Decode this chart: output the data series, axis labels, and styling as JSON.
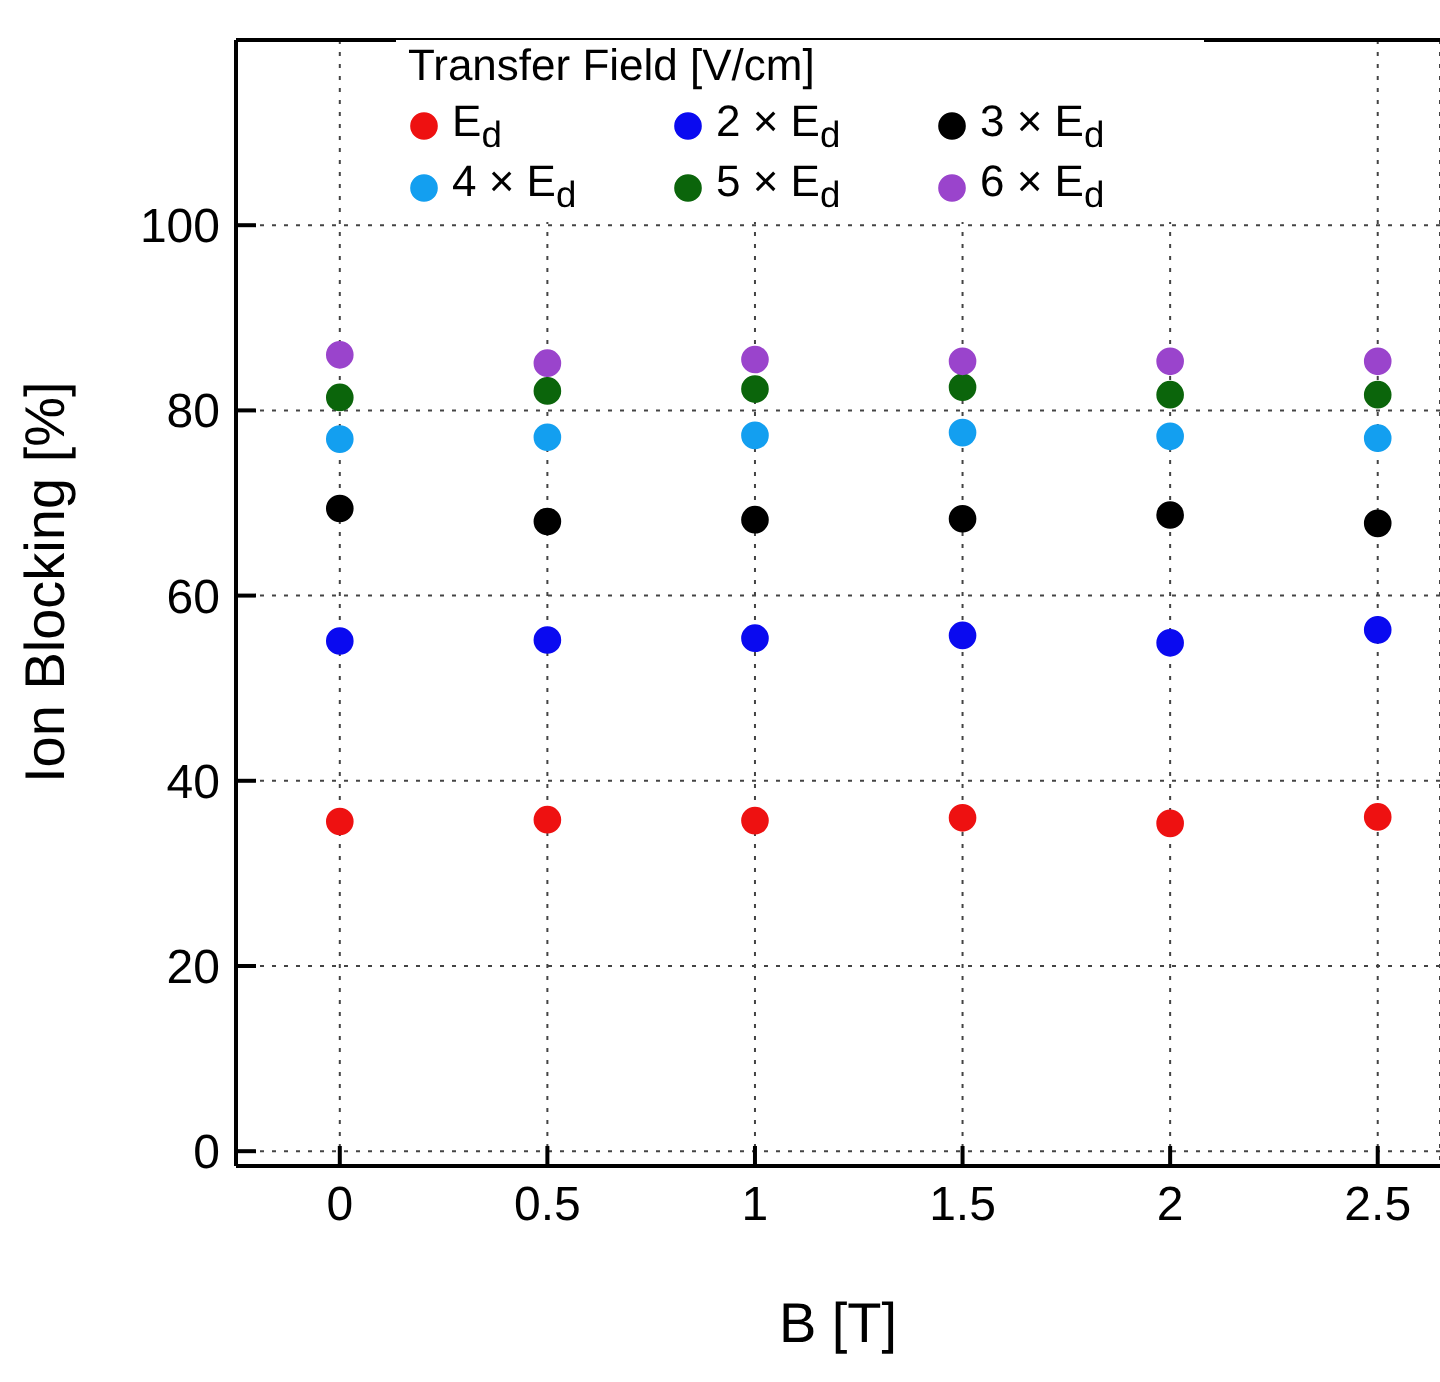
{
  "chart_data": {
    "type": "scatter",
    "xlabel": "B [T]",
    "ylabel": "Ion Blocking  [%]",
    "legend_title": "Transfer Field [V/cm]",
    "x": [
      0,
      0.5,
      1,
      1.5,
      2,
      2.5
    ],
    "series": [
      {
        "name": "E$_{d}$",
        "color": "#ee1111",
        "values": [
          35.6,
          35.8,
          35.7,
          36.0,
          35.4,
          36.1
        ]
      },
      {
        "name": "2 × E$_{d}$",
        "color": "#0a0af0",
        "values": [
          55.1,
          55.2,
          55.4,
          55.7,
          54.9,
          56.3
        ]
      },
      {
        "name": "3 × E$_{d}$",
        "color": "#000000",
        "values": [
          69.4,
          68.0,
          68.2,
          68.3,
          68.7,
          67.8
        ]
      },
      {
        "name": "4 × E$_{d}$",
        "color": "#139ff0",
        "values": [
          76.9,
          77.1,
          77.3,
          77.6,
          77.2,
          77.0
        ]
      },
      {
        "name": "5 × E$_{d}$",
        "color": "#0b650b",
        "values": [
          81.4,
          82.1,
          82.3,
          82.5,
          81.7,
          81.7
        ]
      },
      {
        "name": "6 × E$_{d}$",
        "color": "#9a44cc",
        "values": [
          86.0,
          85.1,
          85.5,
          85.3,
          85.3,
          85.3
        ]
      }
    ],
    "xlim": [
      -0.25,
      2.65
    ],
    "xticks": [
      0,
      0.5,
      1,
      1.5,
      2,
      2.5
    ],
    "ylim": [
      -1.6,
      120
    ],
    "yticks": [
      0,
      20,
      40,
      60,
      80,
      100
    ],
    "grid": true,
    "legend": "top left",
    "marker": "circle"
  }
}
